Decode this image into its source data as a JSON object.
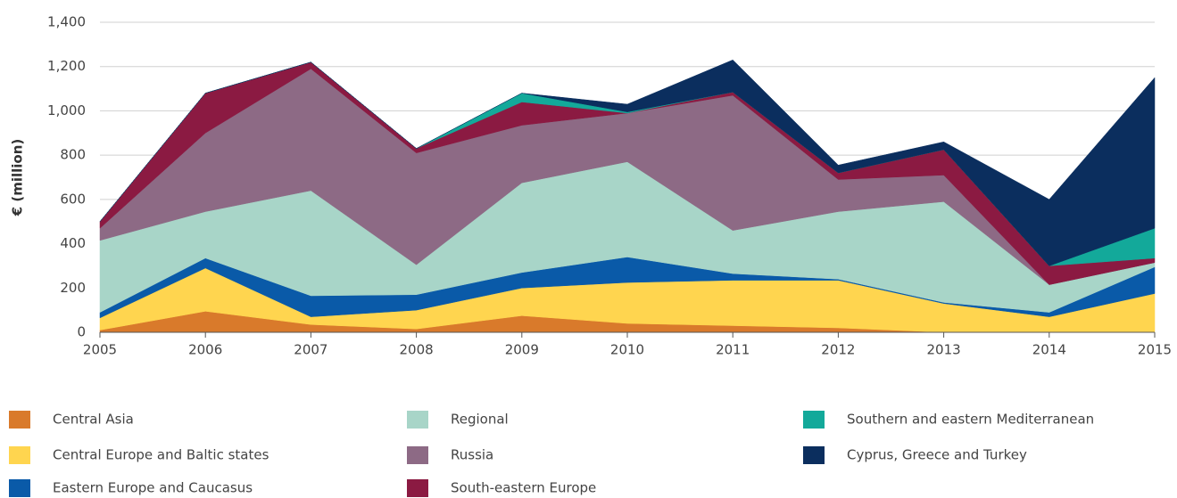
{
  "chart_data": {
    "type": "stacked_area",
    "y_label": "€ (million)",
    "x": [
      2005,
      2006,
      2007,
      2008,
      2009,
      2010,
      2011,
      2012,
      2013,
      2014,
      2015
    ],
    "xlim": [
      2005,
      2015
    ],
    "xticks": [
      2005,
      2006,
      2007,
      2008,
      2009,
      2010,
      2011,
      2012,
      2013,
      2014,
      2015
    ],
    "ylim": [
      0,
      1400
    ],
    "yticks": [
      0,
      200,
      400,
      600,
      800,
      {
        "value": 1000,
        "label": "1,000"
      },
      {
        "value": 1200,
        "label": "1,200"
      },
      {
        "value": 1400,
        "label": "1,400"
      }
    ],
    "grid": true,
    "series": [
      {
        "name": "Central Asia",
        "color": "#d97a2b",
        "values": [
          10,
          95,
          35,
          15,
          75,
          40,
          30,
          20,
          0,
          0,
          0
        ]
      },
      {
        "name": "Central Europe and Baltic states",
        "color": "#ffd54f",
        "values": [
          55,
          195,
          35,
          85,
          125,
          185,
          205,
          215,
          130,
          70,
          175
        ]
      },
      {
        "name": "Eastern Europe and Caucasus",
        "color": "#0a5aa8",
        "values": [
          25,
          45,
          95,
          70,
          70,
          115,
          30,
          5,
          5,
          20,
          120
        ]
      },
      {
        "name": "Regional",
        "color": "#a8d5c8",
        "values": [
          325,
          210,
          475,
          135,
          405,
          430,
          195,
          305,
          455,
          125,
          20
        ]
      },
      {
        "name": "Russia",
        "color": "#8d6a85",
        "values": [
          55,
          355,
          550,
          505,
          260,
          220,
          610,
          145,
          120,
          0,
          0
        ]
      },
      {
        "name": "South-eastern Europe",
        "color": "#8b1a42",
        "values": [
          30,
          180,
          30,
          20,
          105,
          0,
          15,
          30,
          115,
          85,
          20
        ]
      },
      {
        "name": "Southern and eastern Mediterranean",
        "color": "#13a99a",
        "values": [
          0,
          0,
          0,
          0,
          40,
          5,
          0,
          0,
          0,
          0,
          135
        ]
      },
      {
        "name": "Cyprus, Greece and Turkey",
        "color": "#0b2e5e",
        "values": [
          0,
          0,
          0,
          0,
          0,
          35,
          145,
          35,
          35,
          300,
          680
        ]
      }
    ]
  }
}
